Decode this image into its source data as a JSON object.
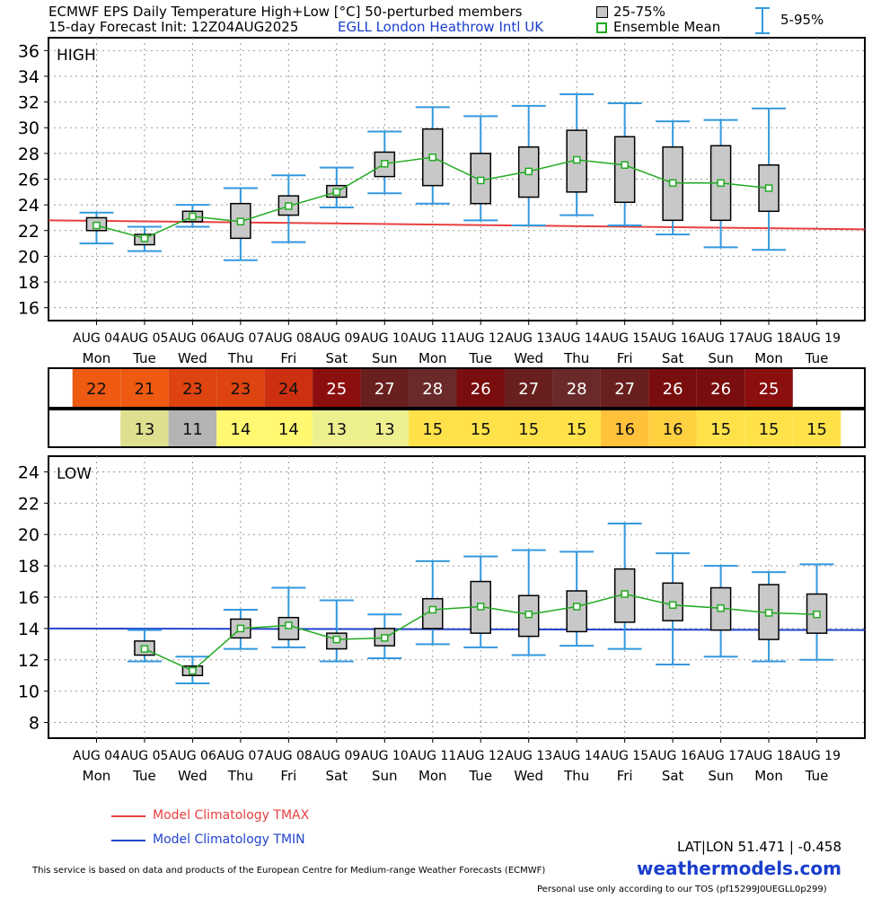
{
  "header": {
    "title_line1": "ECMWF EPS Daily Temperature High+Low [°C]  50-perturbed members",
    "title_line2": "15-day Forecast Init: 12Z04AUG2025",
    "station": "EGLL  London Heathrow Intl UK",
    "legend_box": "25-75%",
    "legend_mean": "Ensemble Mean",
    "legend_whisker": "5-95%"
  },
  "colors": {
    "box_fill": "#c8c8c8",
    "mean_line": "#22aa22",
    "whisker": "#3399dd",
    "clim_tmax": "#e84040",
    "clim_tmin": "#2244cc",
    "brand": "#1a3ecc"
  },
  "dates": [
    "AUG 04",
    "AUG 05",
    "AUG 06",
    "AUG 07",
    "AUG 08",
    "AUG 09",
    "AUG 10",
    "AUG 11",
    "AUG 12",
    "AUG 13",
    "AUG 14",
    "AUG 15",
    "AUG 16",
    "AUG 17",
    "AUG 18",
    "AUG 19"
  ],
  "weekdays": [
    "Mon",
    "Tue",
    "Wed",
    "Thu",
    "Fri",
    "Sat",
    "Sun",
    "Mon",
    "Tue",
    "Wed",
    "Thu",
    "Fri",
    "Sat",
    "Sun",
    "Mon",
    "Tue"
  ],
  "high_row": [
    {
      "value": "22",
      "color": "#ee5a12"
    },
    {
      "value": "21",
      "color": "#ee5a12"
    },
    {
      "value": "23",
      "color": "#dd4410"
    },
    {
      "value": "23",
      "color": "#dd4410"
    },
    {
      "value": "24",
      "color": "#cc3010"
    },
    {
      "value": "25",
      "color": "#8c0f0f"
    },
    {
      "value": "27",
      "color": "#6a1f1f"
    },
    {
      "value": "28",
      "color": "#6a2a2a"
    },
    {
      "value": "26",
      "color": "#7a0e0e"
    },
    {
      "value": "27",
      "color": "#6a1f1f"
    },
    {
      "value": "28",
      "color": "#6a2a2a"
    },
    {
      "value": "27",
      "color": "#6a1f1f"
    },
    {
      "value": "26",
      "color": "#7a0e0e"
    },
    {
      "value": "26",
      "color": "#7a0e0e"
    },
    {
      "value": "25",
      "color": "#8c0f0f"
    },
    {
      "value": "",
      "color": "#ffffff"
    }
  ],
  "low_row": [
    {
      "value": "",
      "color": "#ffffff"
    },
    {
      "value": "13",
      "color": "#dfdf90"
    },
    {
      "value": "11",
      "color": "#b4b4b4"
    },
    {
      "value": "14",
      "color": "#fff870"
    },
    {
      "value": "14",
      "color": "#fff870"
    },
    {
      "value": "13",
      "color": "#eef090"
    },
    {
      "value": "13",
      "color": "#eef090"
    },
    {
      "value": "15",
      "color": "#ffe24a"
    },
    {
      "value": "15",
      "color": "#ffe24a"
    },
    {
      "value": "15",
      "color": "#ffe24a"
    },
    {
      "value": "15",
      "color": "#ffe24a"
    },
    {
      "value": "16",
      "color": "#ffc23a"
    },
    {
      "value": "16",
      "color": "#ffd040"
    },
    {
      "value": "15",
      "color": "#ffe24a"
    },
    {
      "value": "15",
      "color": "#ffe24a"
    },
    {
      "value": "15",
      "color": "#ffe24a"
    }
  ],
  "chart_data": [
    {
      "type": "box",
      "title": "HIGH",
      "ylim": [
        15,
        37
      ],
      "yticks": [
        16,
        18,
        20,
        22,
        24,
        26,
        28,
        30,
        32,
        34,
        36
      ],
      "grid": true,
      "series": [
        {
          "name": "5-95%",
          "low": [
            21.0,
            20.4,
            22.3,
            19.7,
            21.1,
            23.8,
            24.9,
            24.1,
            22.8,
            22.4,
            23.2,
            22.4,
            21.7,
            20.7,
            20.5,
            null
          ],
          "high": [
            23.4,
            22.3,
            24.0,
            25.3,
            26.3,
            26.9,
            29.7,
            31.6,
            30.9,
            31.7,
            32.6,
            31.9,
            30.5,
            30.6,
            31.5,
            null
          ]
        },
        {
          "name": "25-75%",
          "q1": [
            22.0,
            20.9,
            22.7,
            21.4,
            23.2,
            24.6,
            26.2,
            25.5,
            24.1,
            24.6,
            25.0,
            24.2,
            22.8,
            22.8,
            23.5,
            null
          ],
          "q3": [
            23.0,
            21.7,
            23.5,
            24.1,
            24.7,
            25.5,
            28.1,
            29.9,
            28.0,
            28.5,
            29.8,
            29.3,
            28.5,
            28.6,
            27.1,
            null
          ]
        },
        {
          "name": "Ensemble Mean",
          "values": [
            22.4,
            21.4,
            23.1,
            22.7,
            23.9,
            25.0,
            27.2,
            27.7,
            25.9,
            26.6,
            27.5,
            27.1,
            25.7,
            25.7,
            25.3,
            null
          ]
        }
      ],
      "climatology": {
        "name": "Model Climatology TMAX",
        "start": 22.8,
        "end": 22.1
      }
    },
    {
      "type": "box",
      "title": "LOW",
      "ylim": [
        7,
        25
      ],
      "yticks": [
        8,
        10,
        12,
        14,
        16,
        18,
        20,
        22,
        24
      ],
      "grid": true,
      "series": [
        {
          "name": "5-95%",
          "low": [
            null,
            11.9,
            10.5,
            12.7,
            12.8,
            11.9,
            12.1,
            13.0,
            12.8,
            12.3,
            12.9,
            12.7,
            11.7,
            12.2,
            11.9,
            12.0
          ],
          "high": [
            null,
            13.9,
            12.2,
            15.2,
            16.6,
            15.8,
            14.9,
            18.3,
            18.6,
            19.0,
            18.9,
            20.7,
            18.8,
            18.0,
            17.6,
            18.1
          ]
        },
        {
          "name": "25-75%",
          "q1": [
            null,
            12.3,
            11.0,
            13.4,
            13.3,
            12.7,
            12.9,
            14.0,
            13.7,
            13.5,
            13.8,
            14.4,
            14.5,
            13.9,
            13.3,
            13.7
          ],
          "q3": [
            null,
            13.2,
            11.6,
            14.6,
            14.7,
            13.7,
            14.0,
            15.9,
            17.0,
            16.1,
            16.4,
            17.8,
            16.9,
            16.6,
            16.8,
            16.2
          ]
        },
        {
          "name": "Ensemble Mean",
          "values": [
            null,
            12.7,
            11.3,
            14.0,
            14.2,
            13.3,
            13.4,
            15.2,
            15.4,
            14.9,
            15.4,
            16.2,
            15.5,
            15.3,
            15.0,
            14.9
          ]
        }
      ],
      "climatology": {
        "name": "Model Climatology TMIN",
        "start": 14.0,
        "end": 13.9
      }
    }
  ],
  "footer": {
    "clim_tmax_label": "Model Climatology TMAX",
    "clim_tmin_label": "Model Climatology TMIN",
    "latlon": "LAT|LON  51.471 | -0.458",
    "brand": "weathermodels.com",
    "disclaimer": "This service is based on data and products of the European Centre for Medium-range Weather Forecasts (ECMWF)",
    "tos": "Personal use only according to our TOS (pf15299J0UEGLL0p299)"
  }
}
